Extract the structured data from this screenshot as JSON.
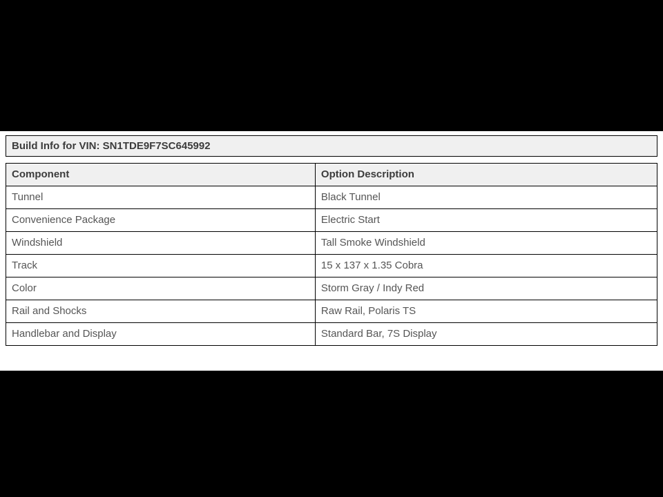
{
  "page": {
    "background_color": "#000000",
    "surface_color": "#ffffff",
    "header_bg_color": "#f0f0f0",
    "border_color": "#000000",
    "title_text_color": "#3c3c3c",
    "cell_text_color": "#555555"
  },
  "build_info": {
    "title": "Build Info for VIN: SN1TDE9F7SC645992",
    "columns": [
      "Component",
      "Option Description"
    ],
    "rows": [
      {
        "component": "Tunnel",
        "option": "Black Tunnel"
      },
      {
        "component": "Convenience Package",
        "option": "Electric Start"
      },
      {
        "component": "Windshield",
        "option": "Tall Smoke Windshield"
      },
      {
        "component": "Track",
        "option": "15 x 137 x 1.35 Cobra"
      },
      {
        "component": "Color",
        "option": "Storm Gray / Indy Red"
      },
      {
        "component": "Rail and Shocks",
        "option": "Raw Rail, Polaris TS"
      },
      {
        "component": "Handlebar and Display",
        "option": "Standard Bar, 7S Display"
      }
    ]
  }
}
